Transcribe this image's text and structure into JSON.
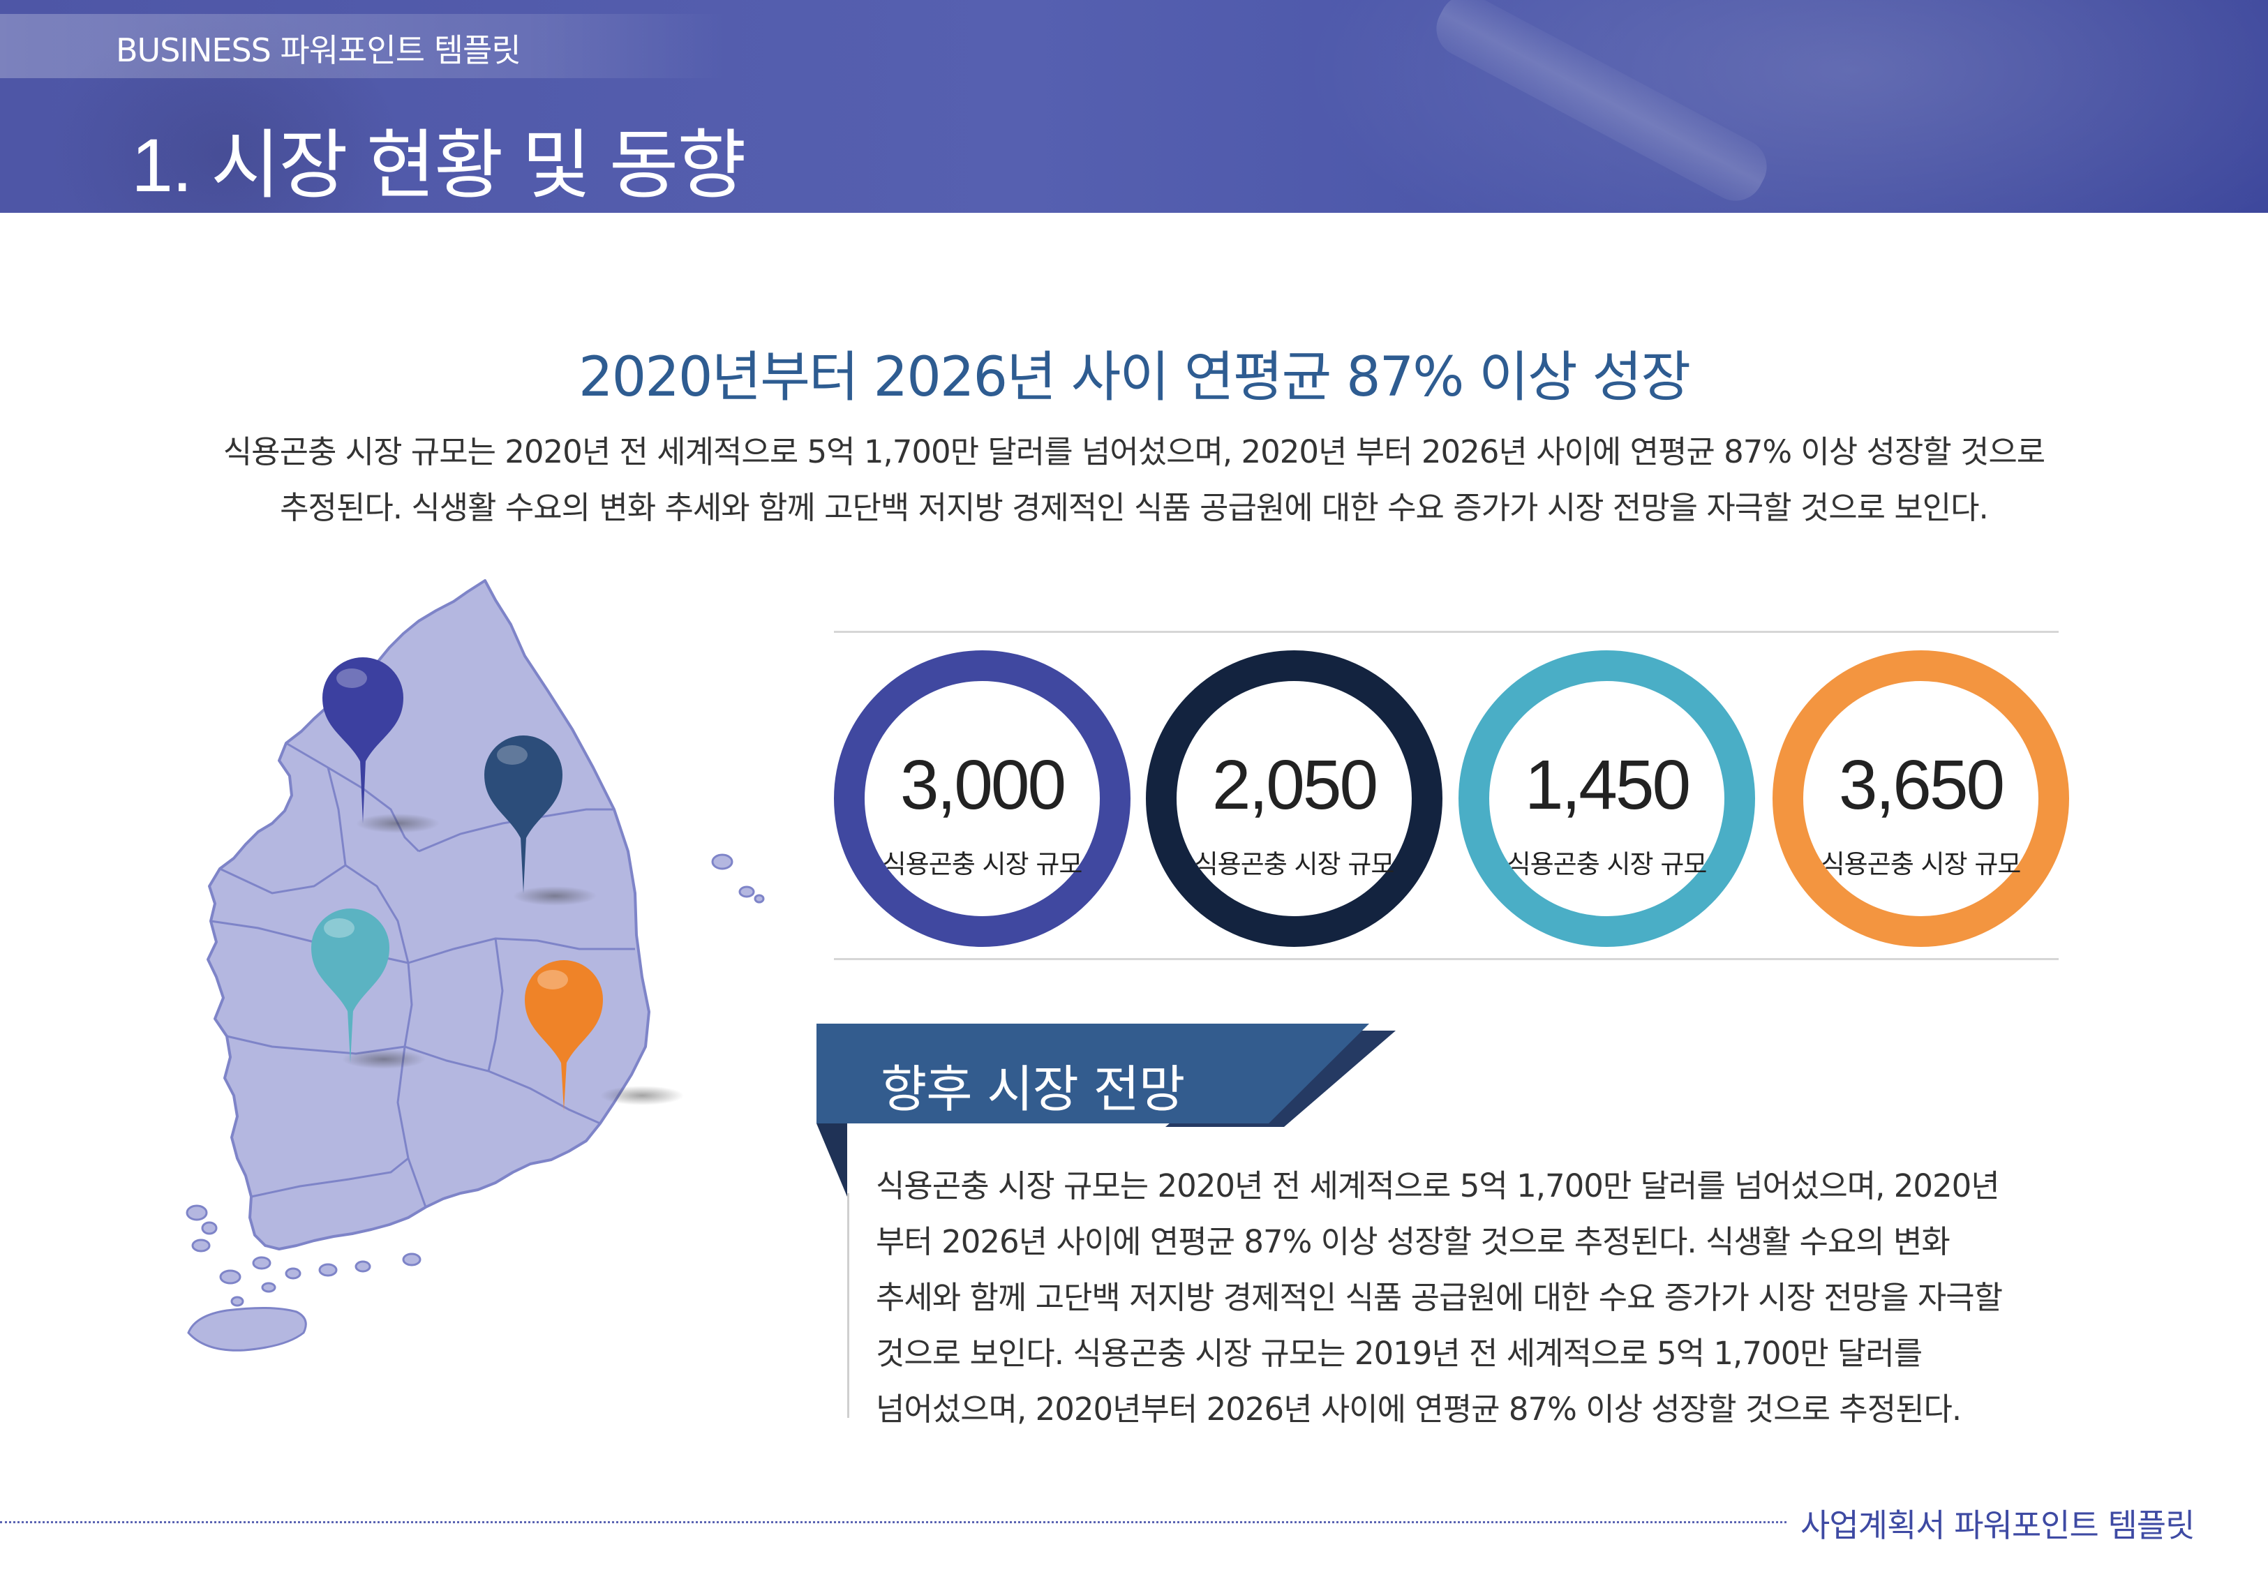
{
  "header": {
    "brand": "BUSINESS 파워포인트 템플릿",
    "title": "1. 시장 현황 및 동향"
  },
  "headline": "2020년부터 2026년 사이 연평균 87% 이상 성장",
  "intro": [
    "식용곤충 시장 규모는 2020년 전 세계적으로 5억 1,700만 달러를 넘어섰으며, 2020년 부터 2026년 사이에 연평균 87% 이상 성장할 것으로",
    "추정된다. 식생활 수요의 변화 추세와 함께 고단백 저지방 경제적인 식품 공급원에 대한 수요 증가가 시장 전망을 자극할 것으로 보인다."
  ],
  "stats": [
    {
      "value": "3,000",
      "label": "식용곤충 시장 규모",
      "color": "#4048a0"
    },
    {
      "value": "2,050",
      "label": "식용곤충 시장 규모",
      "color": "#13233f"
    },
    {
      "value": "1,450",
      "label": "식용곤충 시장 규모",
      "color": "#4aaec6"
    },
    {
      "value": "3,650",
      "label": "식용곤충 시장 규모",
      "color": "#f39540"
    }
  ],
  "map": {
    "fill": "#b4b7e0",
    "stroke": "#7e84c8",
    "pins": [
      {
        "name": "map-pin-icon-navy",
        "color": "#3c40a0"
      },
      {
        "name": "map-pin-icon-dark-blue",
        "color": "#2c4d7a"
      },
      {
        "name": "map-pin-icon-teal",
        "color": "#5bb3c2"
      },
      {
        "name": "map-pin-icon-orange",
        "color": "#ef8328"
      }
    ]
  },
  "outlook": {
    "title": "향후 시장 전망",
    "body": [
      "식용곤충 시장 규모는 2020년 전 세계적으로 5억 1,700만 달러를 넘어섰으며, 2020년",
      "부터 2026년 사이에 연평균 87% 이상 성장할 것으로 추정된다. 식생활 수요의 변화",
      "추세와 함께 고단백 저지방 경제적인 식품 공급원에 대한 수요 증가가 시장 전망을 자극할",
      "것으로 보인다. 식용곤충 시장 규모는 2019년 전 세계적으로 5억 1,700만 달러를",
      "넘어섰으며, 2020년부터 2026년 사이에 연평균 87% 이상 성장할 것으로 추정된다."
    ]
  },
  "footer": "사업계획서 파워포인트 템플릿"
}
